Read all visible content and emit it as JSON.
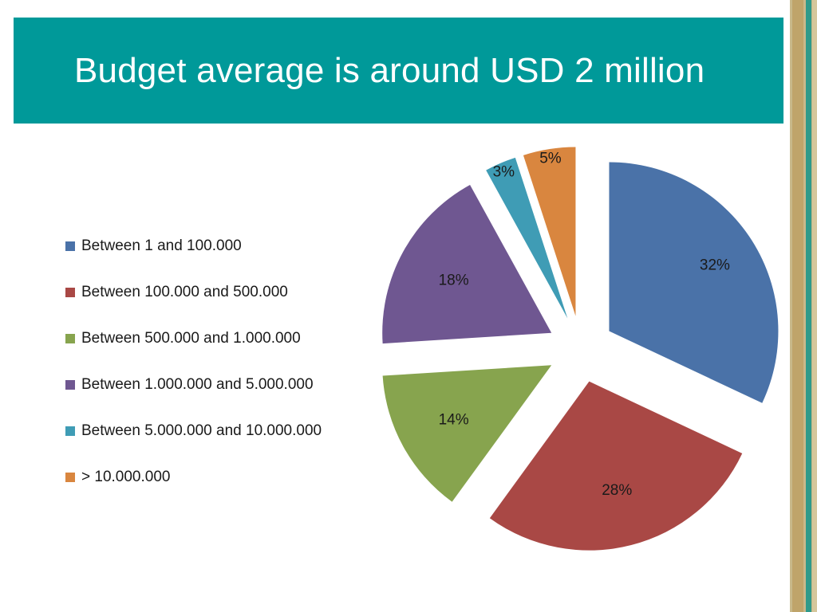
{
  "slide": {
    "title": "Budget average is around USD 2 million",
    "title_bg": "#009999"
  },
  "chart_data": {
    "type": "pie",
    "exploded": true,
    "title": "",
    "legend_position": "left",
    "slices": [
      {
        "label": "Between 1 and 100.000",
        "value": 32,
        "data_label": "32%",
        "color": "#4A72A8"
      },
      {
        "label": "Between 100.000 and 500.000",
        "value": 28,
        "data_label": "28%",
        "color": "#A94845"
      },
      {
        "label": "Between 500.000 and 1.000.000",
        "value": 14,
        "data_label": "14%",
        "color": "#87A44E"
      },
      {
        "label": "Between 1.000.000 and 5.000.000",
        "value": 18,
        "data_label": "18%",
        "color": "#6F5791"
      },
      {
        "label": "Between 5.000.000 and 10.000.000",
        "value": 3,
        "data_label": "3%",
        "color": "#3F9CB5"
      },
      {
        "label": "> 10.000.000",
        "value": 5,
        "data_label": "5%",
        "color": "#D9863F"
      }
    ]
  }
}
